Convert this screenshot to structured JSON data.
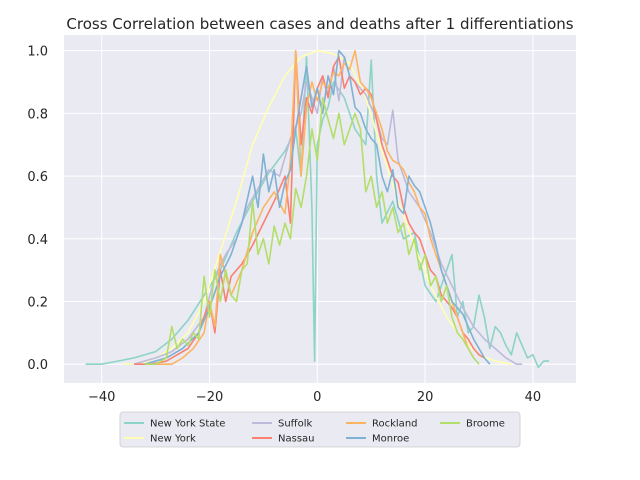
{
  "chart_data": {
    "type": "line",
    "title": "Cross Correlation between cases and deaths after 1 differentiations",
    "xlabel": "",
    "ylabel": "",
    "xlim": [
      -47,
      48
    ],
    "ylim": [
      -0.06,
      1.05
    ],
    "xticks": [
      -40,
      -20,
      0,
      20,
      40
    ],
    "xtick_labels": [
      "−40",
      "−20",
      "0",
      "20",
      "40"
    ],
    "yticks": [
      0.0,
      0.2,
      0.4,
      0.6,
      0.8,
      1.0
    ],
    "ytick_labels": [
      "0.0",
      "0.2",
      "0.4",
      "0.6",
      "0.8",
      "1.0"
    ],
    "grid": true,
    "legend_position": "below",
    "series": [
      {
        "name": "New York State",
        "color": "#8dd3c7",
        "x": [
          -43,
          -40,
          -37,
          -34,
          -30,
          -27,
          -24,
          -21,
          -18,
          -15,
          -12,
          -9,
          -6,
          -4,
          -3,
          -2,
          -1,
          -0.5,
          0,
          1,
          2,
          3,
          5,
          7,
          9,
          10,
          11,
          12,
          14,
          16,
          18,
          20,
          22,
          24,
          25,
          26,
          27,
          28,
          29,
          30,
          31,
          32,
          33,
          34,
          35,
          36,
          37,
          38,
          39,
          40,
          41,
          42,
          43
        ],
        "y": [
          0.0,
          0.0,
          0.01,
          0.02,
          0.04,
          0.08,
          0.14,
          0.22,
          0.3,
          0.42,
          0.52,
          0.61,
          0.68,
          0.75,
          0.6,
          0.98,
          0.5,
          0.01,
          0.7,
          0.78,
          0.82,
          0.9,
          0.85,
          0.75,
          0.7,
          0.97,
          0.6,
          0.45,
          0.52,
          0.4,
          0.42,
          0.25,
          0.2,
          0.3,
          0.35,
          0.15,
          0.2,
          0.1,
          0.12,
          0.22,
          0.15,
          0.05,
          0.12,
          0.1,
          0.06,
          0.03,
          0.1,
          0.06,
          0.02,
          0.03,
          -0.01,
          0.01,
          0.01
        ]
      },
      {
        "name": "New York",
        "color": "#ffffb3",
        "x": [
          -36,
          -33,
          -30,
          -27,
          -24,
          -21,
          -18,
          -15,
          -12,
          -9,
          -6,
          -3,
          0,
          3,
          6,
          9,
          12,
          15,
          18,
          21,
          24,
          27,
          30,
          33,
          36
        ],
        "y": [
          0.0,
          0.0,
          0.02,
          0.05,
          0.1,
          0.2,
          0.36,
          0.52,
          0.7,
          0.82,
          0.92,
          0.98,
          1.0,
          0.99,
          0.96,
          0.85,
          0.68,
          0.52,
          0.38,
          0.25,
          0.15,
          0.08,
          0.03,
          0.01,
          0.0
        ]
      },
      {
        "name": "Suffolk",
        "color": "#bebada",
        "x": [
          -34,
          -30,
          -27,
          -24,
          -21,
          -19,
          -17,
          -15,
          -13,
          -11,
          -9,
          -7,
          -5,
          -3,
          -2,
          -1,
          0,
          1,
          2,
          3,
          4,
          5,
          6,
          7,
          8,
          9,
          10,
          11,
          12,
          13,
          14,
          15,
          17,
          19,
          21,
          23,
          25,
          27,
          29,
          31,
          33,
          35,
          37,
          38
        ],
        "y": [
          0.0,
          0.02,
          0.04,
          0.08,
          0.15,
          0.28,
          0.35,
          0.4,
          0.5,
          0.56,
          0.62,
          0.6,
          0.72,
          0.8,
          0.9,
          0.85,
          0.8,
          0.92,
          0.86,
          0.95,
          0.84,
          0.98,
          0.92,
          0.9,
          0.88,
          0.86,
          0.82,
          0.78,
          0.72,
          0.7,
          0.81,
          0.65,
          0.55,
          0.5,
          0.42,
          0.32,
          0.25,
          0.18,
          0.12,
          0.08,
          0.05,
          0.02,
          0.0,
          0.0
        ]
      },
      {
        "name": "Nassau",
        "color": "#fb8072",
        "x": [
          -34,
          -31,
          -28,
          -26,
          -24,
          -22,
          -20,
          -19,
          -18,
          -17,
          -16,
          -14,
          -12,
          -10,
          -8,
          -6,
          -5,
          -4,
          -3,
          -2,
          -1,
          0,
          1,
          2,
          3,
          4,
          5,
          6,
          7,
          8,
          9,
          10,
          11,
          12,
          13,
          14,
          15,
          16,
          17,
          18,
          19,
          20,
          21,
          22,
          23,
          24,
          25,
          26,
          27,
          28,
          29,
          30,
          31
        ],
        "y": [
          0.0,
          0.0,
          0.01,
          0.03,
          0.05,
          0.1,
          0.2,
          0.1,
          0.3,
          0.2,
          0.28,
          0.32,
          0.38,
          0.45,
          0.52,
          0.6,
          0.45,
          1.0,
          0.7,
          0.85,
          0.8,
          0.88,
          0.92,
          0.85,
          0.95,
          0.98,
          0.88,
          0.92,
          0.9,
          0.86,
          0.88,
          0.86,
          0.78,
          0.7,
          0.65,
          0.6,
          0.58,
          0.5,
          0.45,
          0.42,
          0.4,
          0.35,
          0.3,
          0.28,
          0.22,
          0.2,
          0.18,
          0.15,
          0.1,
          0.08,
          0.05,
          0.03,
          0.02
        ]
      },
      {
        "name": "Rockland",
        "color": "#fdb462",
        "x": [
          -30,
          -27,
          -25,
          -23,
          -21,
          -20,
          -19,
          -18,
          -16,
          -14,
          -12,
          -10,
          -8,
          -6,
          -5,
          -4,
          -3,
          -2,
          -1,
          0,
          1,
          2,
          3,
          4,
          5,
          6,
          7,
          8,
          9,
          10,
          11,
          12,
          13,
          14,
          15,
          16,
          17,
          18,
          19,
          20,
          21,
          22,
          23,
          24,
          25,
          26,
          27,
          28,
          29
        ],
        "y": [
          0.0,
          0.0,
          0.02,
          0.05,
          0.1,
          0.2,
          0.12,
          0.35,
          0.22,
          0.3,
          0.42,
          0.5,
          0.55,
          0.48,
          0.65,
          1.0,
          0.6,
          0.82,
          0.9,
          0.84,
          0.9,
          0.88,
          0.93,
          0.92,
          0.96,
          0.94,
          1.0,
          0.9,
          0.88,
          0.85,
          0.8,
          0.75,
          0.68,
          0.65,
          0.64,
          0.62,
          0.58,
          0.55,
          0.5,
          0.48,
          0.4,
          0.35,
          0.3,
          0.25,
          0.2,
          0.15,
          0.1,
          0.05,
          0.02
        ]
      },
      {
        "name": "Monroe",
        "color": "#80b1d3",
        "x": [
          -32,
          -28,
          -25,
          -22,
          -20,
          -18,
          -16,
          -14,
          -12,
          -11,
          -10,
          -9,
          -8,
          -7,
          -6,
          -5,
          -4,
          -3,
          -2,
          -1,
          0,
          1,
          2,
          3,
          4,
          5,
          6,
          7,
          8,
          9,
          10,
          11,
          12,
          13,
          14,
          15,
          16,
          17,
          18,
          19,
          20,
          21,
          22,
          23,
          24,
          25,
          26,
          27,
          28,
          29,
          30,
          31,
          32
        ],
        "y": [
          0.0,
          0.02,
          0.05,
          0.1,
          0.18,
          0.28,
          0.35,
          0.45,
          0.6,
          0.5,
          0.67,
          0.55,
          0.62,
          0.5,
          0.58,
          0.62,
          0.75,
          0.85,
          0.95,
          0.82,
          0.88,
          0.8,
          0.92,
          0.86,
          1.0,
          0.98,
          0.92,
          0.82,
          0.8,
          0.75,
          0.72,
          0.7,
          0.6,
          0.55,
          0.62,
          0.5,
          0.48,
          0.6,
          0.57,
          0.55,
          0.5,
          0.45,
          0.38,
          0.3,
          0.25,
          0.2,
          0.18,
          0.16,
          0.12,
          0.08,
          0.05,
          0.02,
          0.0
        ]
      },
      {
        "name": "Broome",
        "color": "#b3de69",
        "x": [
          -32,
          -30,
          -28,
          -27,
          -26,
          -25,
          -24,
          -23,
          -22,
          -21,
          -20,
          -19,
          -18,
          -17,
          -16,
          -15,
          -14,
          -13,
          -12,
          -11,
          -10,
          -9,
          -8,
          -7,
          -6,
          -5,
          -4,
          -3,
          -2,
          -1,
          0,
          1,
          2,
          3,
          4,
          5,
          6,
          7,
          8,
          9,
          10,
          11,
          12,
          13,
          14,
          15,
          16,
          17,
          18,
          19,
          20,
          21,
          22,
          23,
          24,
          25,
          26,
          27,
          28,
          29,
          30
        ],
        "y": [
          0.0,
          0.0,
          0.02,
          0.12,
          0.05,
          0.08,
          0.06,
          0.1,
          0.08,
          0.28,
          0.15,
          0.3,
          0.2,
          0.3,
          0.22,
          0.2,
          0.3,
          0.32,
          0.52,
          0.35,
          0.4,
          0.32,
          0.44,
          0.38,
          0.45,
          0.4,
          0.56,
          0.5,
          0.6,
          0.75,
          0.65,
          0.85,
          0.78,
          0.72,
          0.8,
          0.7,
          0.75,
          0.8,
          0.75,
          0.55,
          0.6,
          0.5,
          0.55,
          0.45,
          0.5,
          0.42,
          0.45,
          0.35,
          0.4,
          0.3,
          0.35,
          0.25,
          0.28,
          0.2,
          0.25,
          0.15,
          0.1,
          0.08,
          0.05,
          0.02,
          0.0
        ]
      }
    ]
  }
}
